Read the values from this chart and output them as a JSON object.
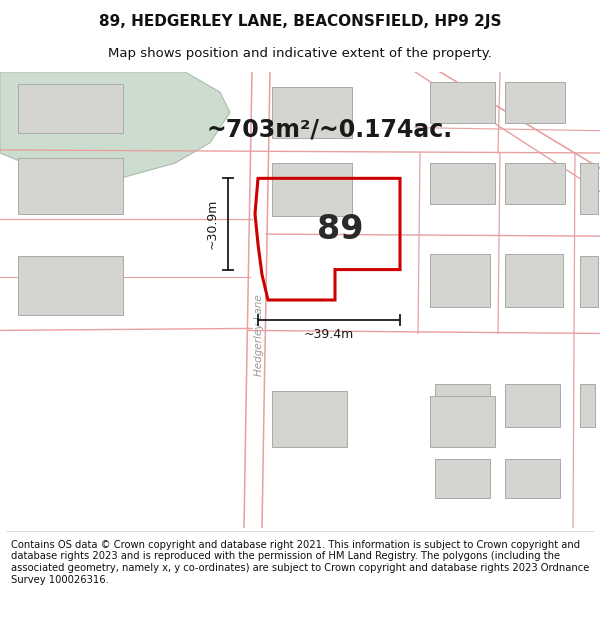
{
  "title": "89, HEDGERLEY LANE, BEACONSFIELD, HP9 2JS",
  "subtitle": "Map shows position and indicative extent of the property.",
  "footer": "Contains OS data © Crown copyright and database right 2021. This information is subject to Crown copyright and database rights 2023 and is reproduced with the permission of HM Land Registry. The polygons (including the associated geometry, namely x, y co-ordinates) are subject to Crown copyright and database rights 2023 Ordnance Survey 100026316.",
  "map_bg": "#f7f7f5",
  "road_line_color": "#e8a0a0",
  "building_color": "#d4d4d0",
  "building_edge_color": "#aaaaaa",
  "green_area_color": "#ccddd0",
  "green_edge_color": "#aabcae",
  "highlight_color": "#cc0000",
  "dimension_color": "#1a1a1a",
  "area_label": "~703m²/~0.174ac.",
  "dim_width": "~39.4m",
  "dim_height": "~30.9m",
  "property_label": "89",
  "title_fontsize": 11,
  "subtitle_fontsize": 9.5,
  "footer_fontsize": 7.2,
  "road_label": "Hedgerley Lane"
}
